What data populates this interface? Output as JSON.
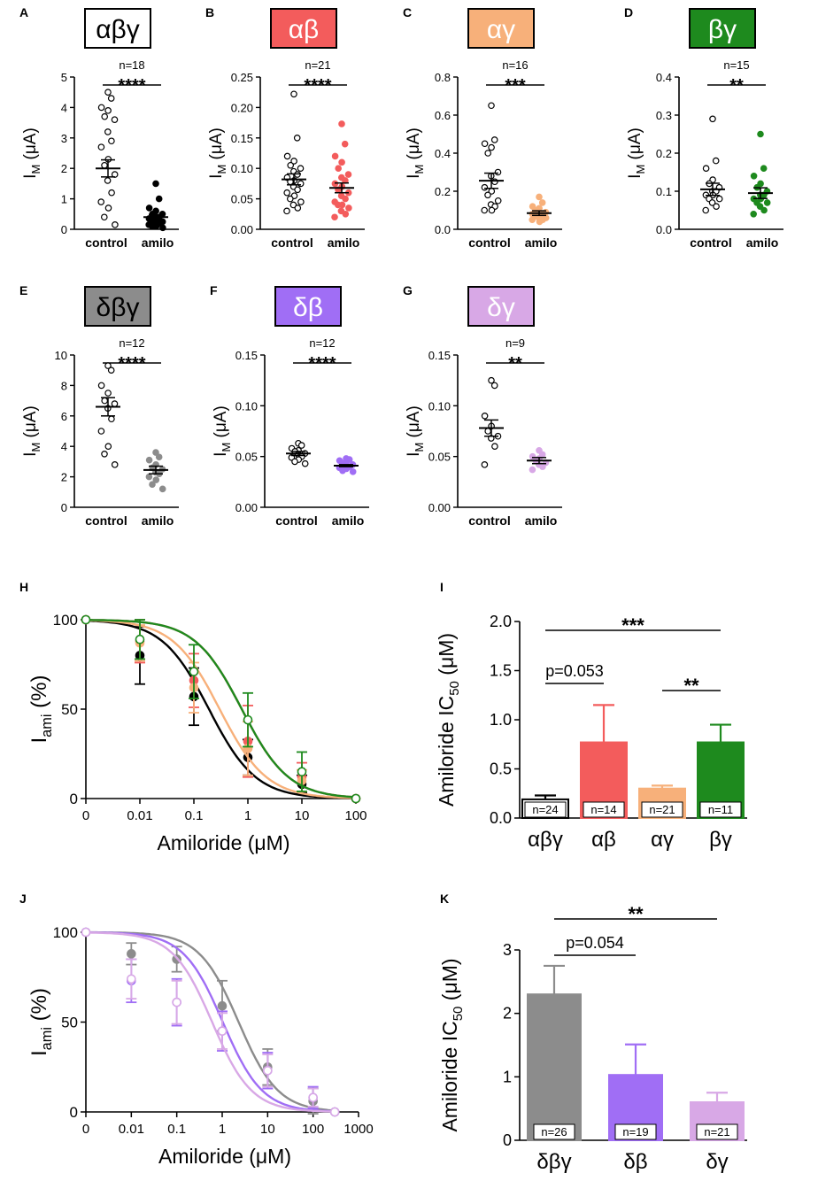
{
  "chart_data": [
    {
      "id": "A",
      "type": "scatter",
      "panel_letter": "A",
      "title": "αβγ",
      "title_bg": "#ffffff",
      "title_fg": "#000000",
      "n_label": "n=18",
      "sig": "****",
      "ylabel_main": "I",
      "ylabel_sub": "M",
      "ylabel_unit": " (μA)",
      "yticks": [
        "0",
        "1",
        "2",
        "3",
        "4",
        "5"
      ],
      "ylim": [
        0,
        5
      ],
      "categories": [
        "control",
        "amilo"
      ],
      "series": [
        {
          "name": "control",
          "fill": "#ffffff",
          "stroke": "#000000",
          "mean": 2.0,
          "sem": 0.28,
          "values": [
            4.5,
            4.3,
            4.0,
            3.9,
            3.7,
            3.6,
            3.2,
            2.9,
            2.7,
            2.3,
            2.1,
            1.8,
            1.6,
            1.2,
            0.9,
            0.7,
            0.4,
            0.15
          ]
        },
        {
          "name": "amilo",
          "fill": "#000000",
          "stroke": "#000000",
          "mean": 0.4,
          "sem": 0.08,
          "values": [
            1.5,
            1.0,
            0.7,
            0.6,
            0.5,
            0.5,
            0.4,
            0.4,
            0.35,
            0.3,
            0.3,
            0.25,
            0.2,
            0.2,
            0.15,
            0.1,
            0.1,
            0.05
          ]
        }
      ]
    },
    {
      "id": "B",
      "type": "scatter",
      "panel_letter": "B",
      "title": "αβ",
      "title_bg": "#f35c5c",
      "title_fg": "#ffffff",
      "n_label": "n=21",
      "sig": "****",
      "ylabel_main": "I",
      "ylabel_sub": "M",
      "ylabel_unit": " (μA)",
      "yticks": [
        "0.00",
        "0.05",
        "0.10",
        "0.15",
        "0.20",
        "0.25"
      ],
      "ylim": [
        0,
        0.25
      ],
      "categories": [
        "control",
        "amilo"
      ],
      "series": [
        {
          "name": "control",
          "fill": "#ffffff",
          "stroke": "#000000",
          "mean": 0.082,
          "sem": 0.009,
          "values": [
            0.222,
            0.15,
            0.12,
            0.112,
            0.105,
            0.1,
            0.095,
            0.09,
            0.085,
            0.08,
            0.078,
            0.075,
            0.07,
            0.065,
            0.06,
            0.055,
            0.05,
            0.045,
            0.04,
            0.035,
            0.03
          ]
        },
        {
          "name": "amilo",
          "fill": "#f35c5c",
          "stroke": "#f35c5c",
          "mean": 0.068,
          "sem": 0.008,
          "values": [
            0.173,
            0.14,
            0.12,
            0.11,
            0.1,
            0.09,
            0.085,
            0.08,
            0.075,
            0.07,
            0.065,
            0.06,
            0.055,
            0.05,
            0.045,
            0.04,
            0.04,
            0.035,
            0.03,
            0.025,
            0.02
          ]
        }
      ]
    },
    {
      "id": "C",
      "type": "scatter",
      "panel_letter": "C",
      "title": "αγ",
      "title_bg": "#f7b07a",
      "title_fg": "#ffffff",
      "n_label": "n=16",
      "sig": "***",
      "ylabel_main": "I",
      "ylabel_sub": "M",
      "ylabel_unit": " (μA)",
      "yticks": [
        "0.0",
        "0.2",
        "0.4",
        "0.6",
        "0.8"
      ],
      "ylim": [
        0,
        0.8
      ],
      "categories": [
        "control",
        "amilo"
      ],
      "series": [
        {
          "name": "control",
          "fill": "#ffffff",
          "stroke": "#000000",
          "mean": 0.255,
          "sem": 0.04,
          "values": [
            0.65,
            0.47,
            0.45,
            0.43,
            0.4,
            0.3,
            0.28,
            0.25,
            0.22,
            0.2,
            0.18,
            0.15,
            0.13,
            0.12,
            0.1,
            0.1
          ]
        },
        {
          "name": "amilo",
          "fill": "#f7b07a",
          "stroke": "#f7b07a",
          "mean": 0.085,
          "sem": 0.012,
          "values": [
            0.17,
            0.14,
            0.12,
            0.11,
            0.1,
            0.09,
            0.09,
            0.08,
            0.08,
            0.07,
            0.07,
            0.06,
            0.06,
            0.05,
            0.05,
            0.04
          ]
        }
      ]
    },
    {
      "id": "D",
      "type": "scatter",
      "panel_letter": "D",
      "title": "βγ",
      "title_bg": "#1e8a1e",
      "title_fg": "#ffffff",
      "n_label": "n=15",
      "sig": "**",
      "ylabel_main": "I",
      "ylabel_sub": "M",
      "ylabel_unit": " (μA)",
      "yticks": [
        "0.0",
        "0.1",
        "0.2",
        "0.3",
        "0.4"
      ],
      "ylim": [
        0,
        0.4
      ],
      "categories": [
        "control",
        "amilo"
      ],
      "series": [
        {
          "name": "control",
          "fill": "#ffffff",
          "stroke": "#000000",
          "mean": 0.105,
          "sem": 0.016,
          "values": [
            0.29,
            0.18,
            0.16,
            0.13,
            0.12,
            0.11,
            0.1,
            0.1,
            0.09,
            0.09,
            0.08,
            0.08,
            0.07,
            0.06,
            0.05
          ]
        },
        {
          "name": "amilo",
          "fill": "#1e8a1e",
          "stroke": "#1e8a1e",
          "mean": 0.095,
          "sem": 0.014,
          "values": [
            0.25,
            0.16,
            0.14,
            0.12,
            0.11,
            0.1,
            0.09,
            0.09,
            0.08,
            0.08,
            0.07,
            0.07,
            0.06,
            0.05,
            0.04
          ]
        }
      ]
    },
    {
      "id": "E",
      "type": "scatter",
      "panel_letter": "E",
      "title": "δβγ",
      "title_bg": "#8c8c8c",
      "title_fg": "#000000",
      "n_label": "n=12",
      "sig": "****",
      "ylabel_main": "I",
      "ylabel_sub": "M",
      "ylabel_unit": " (μA)",
      "yticks": [
        "0",
        "2",
        "4",
        "6",
        "8",
        "10"
      ],
      "ylim": [
        0,
        10
      ],
      "categories": [
        "control",
        "amilo"
      ],
      "series": [
        {
          "name": "control",
          "fill": "#ffffff",
          "stroke": "#000000",
          "mean": 6.6,
          "sem": 0.6,
          "values": [
            9.3,
            9.0,
            8.0,
            7.5,
            7.0,
            6.8,
            6.5,
            5.8,
            5.0,
            4.0,
            3.5,
            2.8
          ]
        },
        {
          "name": "amilo",
          "fill": "#8c8c8c",
          "stroke": "#8c8c8c",
          "mean": 2.45,
          "sem": 0.25,
          "values": [
            3.6,
            3.3,
            3.1,
            2.8,
            2.6,
            2.5,
            2.3,
            2.2,
            2.0,
            1.8,
            1.5,
            1.2
          ]
        }
      ]
    },
    {
      "id": "F",
      "type": "scatter",
      "panel_letter": "F",
      "title": "δβ",
      "title_bg": "#a06ef5",
      "title_fg": "#ffffff",
      "n_label": "n=12",
      "sig": "****",
      "ylabel_main": "I",
      "ylabel_sub": "M",
      "ylabel_unit": " (μA)",
      "yticks": [
        "0.00",
        "0.05",
        "0.10",
        "0.15"
      ],
      "ylim": [
        0,
        0.15
      ],
      "categories": [
        "control",
        "amilo"
      ],
      "series": [
        {
          "name": "control",
          "fill": "#ffffff",
          "stroke": "#000000",
          "mean": 0.053,
          "sem": 0.002,
          "values": [
            0.063,
            0.061,
            0.058,
            0.056,
            0.055,
            0.053,
            0.052,
            0.05,
            0.049,
            0.047,
            0.045,
            0.043
          ]
        },
        {
          "name": "amilo",
          "fill": "#a06ef5",
          "stroke": "#a06ef5",
          "mean": 0.041,
          "sem": 0.001,
          "values": [
            0.048,
            0.047,
            0.046,
            0.045,
            0.043,
            0.042,
            0.041,
            0.04,
            0.039,
            0.038,
            0.036,
            0.035
          ]
        }
      ]
    },
    {
      "id": "G",
      "type": "scatter",
      "panel_letter": "G",
      "title": "δγ",
      "title_bg": "#d8a8e6",
      "title_fg": "#ffffff",
      "n_label": "n=9",
      "sig": "**",
      "ylabel_main": "I",
      "ylabel_sub": "M",
      "ylabel_unit": " (μA)",
      "yticks": [
        "0.00",
        "0.05",
        "0.10",
        "0.15"
      ],
      "ylim": [
        0,
        0.15
      ],
      "categories": [
        "control",
        "amilo"
      ],
      "series": [
        {
          "name": "control",
          "fill": "#ffffff",
          "stroke": "#000000",
          "mean": 0.078,
          "sem": 0.008,
          "values": [
            0.125,
            0.12,
            0.09,
            0.08,
            0.075,
            0.07,
            0.068,
            0.06,
            0.042
          ]
        },
        {
          "name": "amilo",
          "fill": "#d8a8e6",
          "stroke": "#d8a8e6",
          "mean": 0.046,
          "sem": 0.003,
          "values": [
            0.056,
            0.052,
            0.05,
            0.048,
            0.046,
            0.044,
            0.042,
            0.04,
            0.037
          ]
        }
      ]
    },
    {
      "id": "H",
      "type": "line",
      "panel_letter": "H",
      "ylabel_main": "I",
      "ylabel_sub": "ami",
      "ylabel_unit": " (%)",
      "xlabel": "Amiloride (μM)",
      "xticks": [
        "0",
        "0.01",
        "0.1",
        "1",
        "10",
        "100"
      ],
      "yticks": [
        "0",
        "50",
        "100"
      ],
      "ylim": [
        0,
        100
      ],
      "x": [
        0,
        0.01,
        0.1,
        1,
        10,
        100
      ],
      "series": [
        {
          "name": "αβγ",
          "color": "#000000",
          "marker": "filled",
          "ic50": 0.19,
          "values": [
            100,
            80,
            57,
            23,
            8,
            0
          ],
          "errors": [
            0,
            16,
            16,
            10,
            5,
            0
          ]
        },
        {
          "name": "αβ",
          "color": "#f35c5c",
          "marker": "filled",
          "ic50": 0.77,
          "values": [
            100,
            88,
            66,
            32,
            12,
            0
          ],
          "errors": [
            0,
            12,
            15,
            20,
            8,
            0
          ]
        },
        {
          "name": "αγ",
          "color": "#f7b07a",
          "marker": "filled",
          "ic50": 0.3,
          "values": [
            100,
            87,
            62,
            28,
            10,
            0
          ],
          "errors": [
            0,
            10,
            14,
            15,
            6,
            0
          ]
        },
        {
          "name": "βγ",
          "color": "#1e8a1e",
          "marker": "open",
          "ic50": 0.77,
          "values": [
            100,
            89,
            71,
            44,
            15,
            0
          ],
          "errors": [
            0,
            11,
            15,
            15,
            11,
            0
          ]
        }
      ]
    },
    {
      "id": "I",
      "type": "bar",
      "panel_letter": "I",
      "ylabel": "Amiloride IC",
      "ylabel_sub": "50",
      "ylabel_unit": " (μM)",
      "yticks": [
        "0.0",
        "0.5",
        "1.0",
        "1.5",
        "2.0"
      ],
      "ylim": [
        0,
        2.0
      ],
      "categories": [
        "αβγ",
        "αβ",
        "αγ",
        "βγ"
      ],
      "values": [
        0.19,
        0.77,
        0.3,
        0.77
      ],
      "errors": [
        0.04,
        0.38,
        0.03,
        0.18
      ],
      "colors": [
        "#ffffff",
        "#f35c5c",
        "#f7b07a",
        "#1e8a1e"
      ],
      "n_labels": [
        "n=24",
        "n=14",
        "n=21",
        "n=11"
      ],
      "comparisons": [
        {
          "from": 0,
          "to": 3,
          "label": "***"
        },
        {
          "from": 0,
          "to": 1,
          "label": "p=0.053"
        },
        {
          "from": 2,
          "to": 3,
          "label": "**"
        }
      ]
    },
    {
      "id": "J",
      "type": "line",
      "panel_letter": "J",
      "ylabel_main": "I",
      "ylabel_sub": "ami",
      "ylabel_unit": " (%)",
      "xlabel": "Amiloride (μM)",
      "xticks": [
        "0",
        "0.01",
        "0.1",
        "1",
        "10",
        "100",
        "1000"
      ],
      "yticks": [
        "0",
        "50",
        "100"
      ],
      "ylim": [
        0,
        100
      ],
      "x": [
        0,
        0.01,
        0.1,
        1,
        10,
        100,
        300
      ],
      "series": [
        {
          "name": "δβγ",
          "color": "#8c8c8c",
          "marker": "filled",
          "ic50": 2.3,
          "values": [
            100,
            88,
            85,
            59,
            25,
            6,
            0
          ],
          "errors": [
            0,
            6,
            7,
            14,
            10,
            7,
            0
          ]
        },
        {
          "name": "δβ",
          "color": "#a06ef5",
          "marker": "open",
          "ic50": 1.03,
          "values": [
            100,
            73,
            61,
            45,
            23,
            8,
            0
          ],
          "errors": [
            0,
            12,
            13,
            11,
            10,
            6,
            0
          ]
        },
        {
          "name": "δγ",
          "color": "#d8a8e6",
          "marker": "open",
          "ic50": 0.6,
          "values": [
            100,
            74,
            61,
            45,
            23,
            8,
            0
          ],
          "errors": [
            0,
            11,
            12,
            10,
            9,
            5,
            0
          ]
        }
      ]
    },
    {
      "id": "K",
      "type": "bar",
      "panel_letter": "K",
      "ylabel": "Amiloride IC",
      "ylabel_sub": "50",
      "ylabel_unit": " (μM)",
      "yticks": [
        "0",
        "1",
        "2",
        "3"
      ],
      "ylim": [
        0,
        3
      ],
      "categories": [
        "δβγ",
        "δβ",
        "δγ"
      ],
      "values": [
        2.3,
        1.03,
        0.6
      ],
      "errors": [
        0.45,
        0.48,
        0.15
      ],
      "colors": [
        "#8c8c8c",
        "#a06ef5",
        "#d8a8e6"
      ],
      "n_labels": [
        "n=26",
        "n=19",
        "n=21"
      ],
      "comparisons": [
        {
          "from": 0,
          "to": 2,
          "label": "**"
        },
        {
          "from": 0,
          "to": 1,
          "label": "p=0.054"
        }
      ]
    }
  ]
}
